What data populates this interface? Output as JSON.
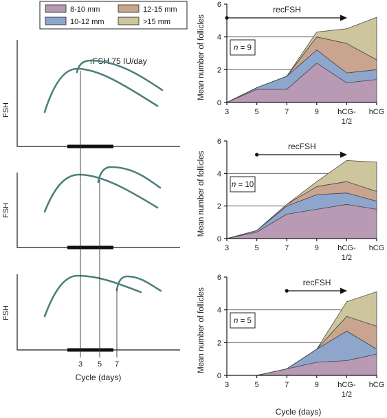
{
  "legend": {
    "items": [
      {
        "label": "8-10 mm",
        "color": "#b89ab5"
      },
      {
        "label": "12-15 mm",
        "color": "#c9a48f"
      },
      {
        "label": "10-12 mm",
        "color": "#8fa6cc"
      },
      {
        "label": ">15 mm",
        "color": "#cdc59b"
      }
    ]
  },
  "left_panels": {
    "annotation": "rFSH 75 IU/day",
    "ylabel": "FSH",
    "xlabel": "Cycle (days)",
    "day_ticks": [
      "3",
      "5",
      "7"
    ],
    "curve_color": "#4d7f7c"
  },
  "chart_data": [
    {
      "type": "area",
      "stacked": true,
      "title": "",
      "ylabel": "Mean number of follicles",
      "xlabel": "",
      "categories": [
        "3",
        "5",
        "7",
        "9",
        "hCG-1/2",
        "hCG"
      ],
      "yticks": [
        "0",
        "2",
        "4",
        "6"
      ],
      "ylim": [
        0,
        6
      ],
      "grid": "horizontal at 2 and 4",
      "annotation": "n = 9",
      "n": "9",
      "arrow_label": "recFSH",
      "arrow_start_day": "3",
      "series": [
        {
          "name": "8-10 mm",
          "values": [
            0,
            0.8,
            0.8,
            2.4,
            1.2,
            1.4
          ]
        },
        {
          "name": "10-12 mm",
          "values": [
            0,
            0.1,
            0.8,
            0.8,
            0.6,
            0.6
          ]
        },
        {
          "name": "12-15 mm",
          "values": [
            0,
            0,
            0,
            0.8,
            1.8,
            0.6
          ]
        },
        {
          "name": ">15 mm",
          "values": [
            0,
            0,
            0,
            0.3,
            0.9,
            2.6
          ]
        }
      ]
    },
    {
      "type": "area",
      "stacked": true,
      "title": "",
      "ylabel": "Mean number of follicles",
      "xlabel": "",
      "categories": [
        "3",
        "5",
        "7",
        "9",
        "hCG-1/2",
        "hCG"
      ],
      "yticks": [
        "0",
        "2",
        "4",
        "6"
      ],
      "ylim": [
        0,
        6
      ],
      "grid": "horizontal at 2 and 4",
      "annotation": "n = 10",
      "n": "10",
      "arrow_label": "recFSH",
      "arrow_start_day": "5",
      "series": [
        {
          "name": "8-10 mm",
          "values": [
            0,
            0.4,
            1.5,
            1.8,
            2.1,
            1.8
          ]
        },
        {
          "name": "10-12 mm",
          "values": [
            0,
            0.1,
            0.5,
            0.9,
            0.7,
            0.5
          ]
        },
        {
          "name": "12-15 mm",
          "values": [
            0,
            0,
            0.1,
            0.5,
            0.7,
            0.6
          ]
        },
        {
          "name": ">15 mm",
          "values": [
            0,
            0,
            0,
            0.3,
            1.3,
            1.8
          ]
        }
      ]
    },
    {
      "type": "area",
      "stacked": true,
      "title": "",
      "ylabel": "Mean number of follicles",
      "xlabel": "Cycle (days)",
      "categories": [
        "3",
        "5",
        "7",
        "9",
        "hCG-1/2",
        "hCG"
      ],
      "yticks": [
        "0",
        "2",
        "4",
        "6"
      ],
      "ylim": [
        0,
        6
      ],
      "grid": "horizontal at 2 and 4",
      "annotation": "n = 5",
      "n": "5",
      "arrow_label": "recFSH",
      "arrow_start_day": "7",
      "series": [
        {
          "name": "8-10 mm",
          "values": [
            0,
            0,
            0.4,
            0.8,
            0.9,
            1.3
          ]
        },
        {
          "name": "10-12 mm",
          "values": [
            0,
            0,
            0,
            0.8,
            1.8,
            0.3
          ]
        },
        {
          "name": "12-15 mm",
          "values": [
            0,
            0,
            0,
            0,
            0.9,
            1.4
          ]
        },
        {
          "name": ">15 mm",
          "values": [
            0,
            0,
            0,
            0,
            0.9,
            2.1
          ]
        }
      ]
    }
  ]
}
